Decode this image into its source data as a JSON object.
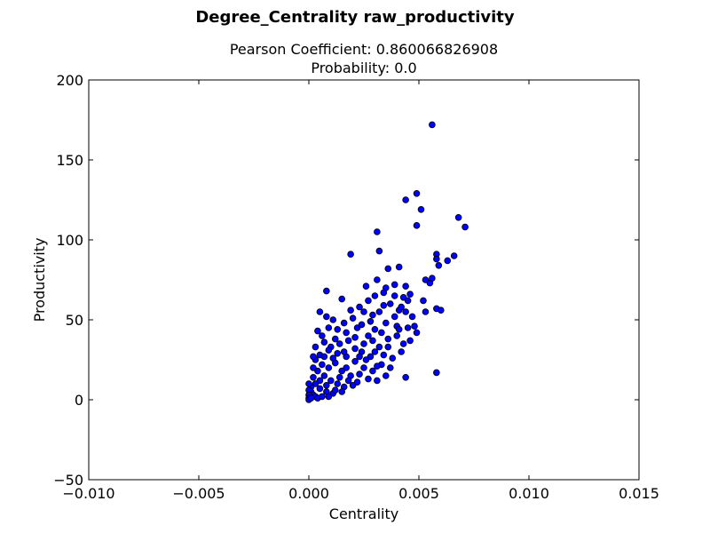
{
  "figure": {
    "suptitle": "Degree_Centrality raw_productivity",
    "subtitle_line1": "Pearson Coefficient: 0.860066826908",
    "subtitle_line2": "Probability: 0.0"
  },
  "colors": {
    "marker_fill": "#0000ff",
    "marker_edge": "#000000",
    "axes": "#000000",
    "background": "#ffffff"
  },
  "chart_data": {
    "type": "scatter",
    "title": "Pearson Coefficient: 0.860066826908\nProbability: 0.0",
    "xlabel": "Centrality",
    "ylabel": "Productivity",
    "xlim": [
      -0.01,
      0.015
    ],
    "ylim": [
      -50,
      200
    ],
    "xticks": [
      -0.01,
      -0.005,
      0.0,
      0.005,
      0.01,
      0.015
    ],
    "xtick_labels": [
      "−0.010",
      "−0.005",
      "0.000",
      "0.005",
      "0.010",
      "0.015"
    ],
    "yticks": [
      -50,
      0,
      50,
      100,
      150,
      200
    ],
    "ytick_labels": [
      "−50",
      "0",
      "50",
      "100",
      "150",
      "200"
    ],
    "grid": false,
    "legend": "none",
    "series": [
      {
        "points": [
          [
            0.0056,
            172
          ],
          [
            0.0049,
            129
          ],
          [
            0.0044,
            125
          ],
          [
            0.0051,
            119
          ],
          [
            0.0068,
            114
          ],
          [
            0.0071,
            108
          ],
          [
            0.0049,
            109
          ],
          [
            0.0031,
            105
          ],
          [
            0.0032,
            93
          ],
          [
            0.0019,
            91
          ],
          [
            0.0058,
            91
          ],
          [
            0.0058,
            88
          ],
          [
            0.0066,
            90
          ],
          [
            0.0063,
            87
          ],
          [
            0.0059,
            84
          ],
          [
            0.0036,
            82
          ],
          [
            0.0041,
            83
          ],
          [
            0.0035,
            70
          ],
          [
            0.0039,
            72
          ],
          [
            0.0044,
            71
          ],
          [
            0.0053,
            75
          ],
          [
            0.0055,
            73
          ],
          [
            0.0056,
            76
          ],
          [
            0.0026,
            71
          ],
          [
            0.0031,
            75
          ],
          [
            0.0039,
            65
          ],
          [
            0.0043,
            64
          ],
          [
            0.0052,
            62
          ],
          [
            0.0058,
            57
          ],
          [
            0.006,
            56
          ],
          [
            0.0053,
            55
          ],
          [
            0.0048,
            46
          ],
          [
            0.0049,
            42
          ],
          [
            0.0046,
            37
          ],
          [
            0.0058,
            17
          ],
          [
            0.0044,
            14
          ],
          [
            0.0031,
            12
          ],
          [
            0.0008,
            68
          ],
          [
            0.0015,
            63
          ],
          [
            0.0023,
            58
          ],
          [
            0.0025,
            55
          ],
          [
            0.0005,
            55
          ],
          [
            0.0008,
            52
          ],
          [
            0.0011,
            50
          ],
          [
            0.0029,
            53
          ],
          [
            0.0034,
            59
          ],
          [
            0.0037,
            60
          ],
          [
            0.0041,
            56
          ],
          [
            0.0047,
            52
          ],
          [
            0.0035,
            48
          ],
          [
            0.003,
            44
          ],
          [
            0.0027,
            40
          ],
          [
            0.0022,
            45
          ],
          [
            0.0017,
            42
          ],
          [
            0.0012,
            38
          ],
          [
            0.0004,
            43
          ],
          [
            0.0007,
            36
          ],
          [
            0.001,
            33
          ],
          [
            0.0014,
            35
          ],
          [
            0.0018,
            37
          ],
          [
            0.0021,
            32
          ],
          [
            0.0024,
            30
          ],
          [
            0.0028,
            27
          ],
          [
            0.0032,
            33
          ],
          [
            0.0036,
            38
          ],
          [
            0.004,
            40
          ],
          [
            0.0043,
            35
          ],
          [
            0.0033,
            22
          ],
          [
            0.0029,
            18
          ],
          [
            0.0025,
            20
          ],
          [
            0.0021,
            24
          ],
          [
            0.0017,
            27
          ],
          [
            0.0013,
            29
          ],
          [
            0.0009,
            31
          ],
          [
            0.0005,
            28
          ],
          [
            0.0003,
            25
          ],
          [
            0.0006,
            22
          ],
          [
            0.0009,
            20
          ],
          [
            0.0012,
            23
          ],
          [
            0.0015,
            18
          ],
          [
            0.0019,
            15
          ],
          [
            0.0023,
            16
          ],
          [
            0.0027,
            13
          ],
          [
            0.0004,
            18
          ],
          [
            0.0007,
            15
          ],
          [
            0.001,
            12
          ],
          [
            0.0013,
            10
          ],
          [
            0.0016,
            8
          ],
          [
            0.002,
            9
          ],
          [
            0.0002,
            20
          ],
          [
            0.0002,
            14
          ],
          [
            0.0003,
            10
          ],
          [
            0.0005,
            7
          ],
          [
            0.0008,
            5
          ],
          [
            0.0011,
            4
          ],
          [
            0.0001,
            8
          ],
          [
            0.0001,
            5
          ],
          [
            0.0002,
            3
          ],
          [
            0.0003,
            2
          ],
          [
            0.0,
            10
          ],
          [
            0.0,
            6
          ],
          [
            0.0,
            3
          ],
          [
            0.0,
            1
          ],
          [
            0.0,
            0
          ],
          [
            0.0001,
            1
          ],
          [
            0.0004,
            1
          ],
          [
            0.0006,
            2
          ],
          [
            0.0009,
            2
          ],
          [
            0.0012,
            6
          ],
          [
            0.0015,
            5
          ],
          [
            0.0018,
            12
          ],
          [
            0.0022,
            11
          ],
          [
            0.0026,
            25
          ],
          [
            0.003,
            30
          ],
          [
            0.0034,
            28
          ],
          [
            0.0038,
            26
          ],
          [
            0.0042,
            30
          ],
          [
            0.0045,
            45
          ],
          [
            0.0016,
            48
          ],
          [
            0.002,
            51
          ],
          [
            0.0024,
            47
          ],
          [
            0.0028,
            49
          ],
          [
            0.0032,
            55
          ],
          [
            0.004,
            46
          ],
          [
            0.0037,
            20
          ],
          [
            0.0035,
            15
          ],
          [
            0.0006,
            40
          ],
          [
            0.0009,
            45
          ],
          [
            0.0003,
            33
          ],
          [
            0.0011,
            26
          ],
          [
            0.0014,
            14
          ],
          [
            0.0017,
            20
          ],
          [
            0.0021,
            39
          ],
          [
            0.0025,
            35
          ],
          [
            0.0029,
            37
          ],
          [
            0.0033,
            42
          ],
          [
            0.0039,
            52
          ],
          [
            0.0042,
            58
          ],
          [
            0.0045,
            62
          ],
          [
            0.003,
            65
          ],
          [
            0.0027,
            62
          ],
          [
            0.0019,
            56
          ],
          [
            0.0013,
            44
          ],
          [
            0.0007,
            27
          ],
          [
            0.0005,
            12
          ],
          [
            0.0002,
            27
          ],
          [
            0.0008,
            9
          ],
          [
            0.0016,
            30
          ],
          [
            0.0023,
            27
          ],
          [
            0.0031,
            21
          ],
          [
            0.0036,
            33
          ],
          [
            0.0041,
            44
          ],
          [
            0.0044,
            55
          ],
          [
            0.0046,
            66
          ],
          [
            0.0034,
            67
          ]
        ]
      }
    ]
  }
}
